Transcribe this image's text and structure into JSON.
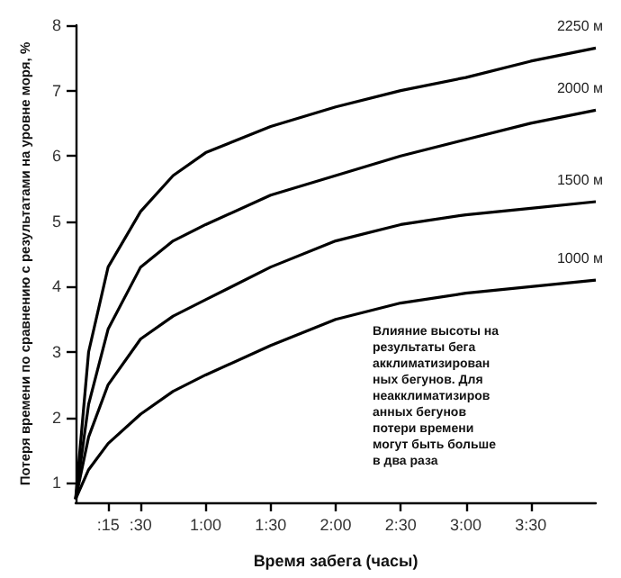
{
  "chart_data": {
    "type": "line",
    "xlabel": "Время забега (часы)",
    "ylabel": "Потеря времени по сравнению с результатами на уровне моря, %",
    "x": [
      0,
      6,
      15,
      30,
      45,
      60,
      90,
      120,
      150,
      180,
      210,
      240
    ],
    "series": [
      {
        "name": "2250 м",
        "color": "#000000",
        "values": [
          0.75,
          3.0,
          4.3,
          5.15,
          5.7,
          6.05,
          6.45,
          6.75,
          7.0,
          7.2,
          7.45,
          7.65
        ]
      },
      {
        "name": "2000 м",
        "color": "#000000",
        "values": [
          0.75,
          2.2,
          3.35,
          4.3,
          4.7,
          4.95,
          5.4,
          5.7,
          6.0,
          6.25,
          6.5,
          6.7
        ]
      },
      {
        "name": "1500 м",
        "color": "#000000",
        "values": [
          0.75,
          1.7,
          2.5,
          3.2,
          3.55,
          3.8,
          4.3,
          4.7,
          4.95,
          5.1,
          5.2,
          5.3
        ]
      },
      {
        "name": "1000 м",
        "color": "#000000",
        "values": [
          0.75,
          1.2,
          1.6,
          2.05,
          2.4,
          2.65,
          3.1,
          3.5,
          3.75,
          3.9,
          4.0,
          4.1
        ]
      }
    ],
    "xlim": [
      0,
      240
    ],
    "xticks": [
      {
        "value": 15,
        "label": ":15"
      },
      {
        "value": 30,
        "label": ":30"
      },
      {
        "value": 60,
        "label": "1:00"
      },
      {
        "value": 90,
        "label": "1:30"
      },
      {
        "value": 120,
        "label": "2:00"
      },
      {
        "value": 150,
        "label": "2:30"
      },
      {
        "value": 180,
        "label": "3:00"
      },
      {
        "value": 210,
        "label": "3:30"
      }
    ],
    "ylim": [
      0.7,
      8
    ],
    "yticks": [
      1,
      2,
      3,
      4,
      5,
      6,
      7,
      8
    ],
    "grid": false,
    "legend": false,
    "marker": "none",
    "line_style": "solid",
    "annotations": [
      "Влияние высоты на результаты бега акклиматизированных бегунов. Для неакклиматизированных бегунов потери времени могут быть больше в два раза"
    ]
  }
}
